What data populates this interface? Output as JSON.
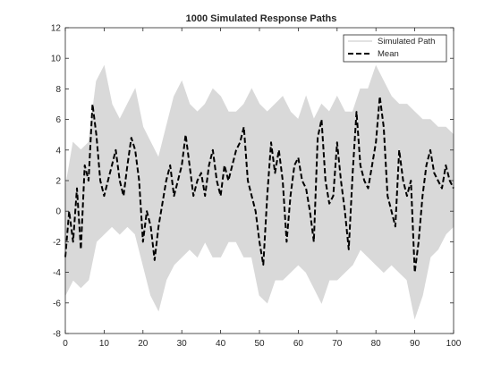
{
  "chart_data": {
    "type": "line",
    "title": "1000 Simulated Response Paths",
    "xlabel": "",
    "ylabel": "",
    "xlim": [
      0,
      100
    ],
    "ylim": [
      -8,
      12
    ],
    "xticks": [
      0,
      10,
      20,
      30,
      40,
      50,
      60,
      70,
      80,
      90,
      100
    ],
    "yticks": [
      -8,
      -6,
      -4,
      -2,
      0,
      2,
      4,
      6,
      8,
      10,
      12
    ],
    "grid": false,
    "legend_position": "top-right",
    "colors": {
      "simulated": "#d9d9d9",
      "mean": "#000000",
      "axes": "#262626"
    },
    "series": [
      {
        "name": "Simulated Path",
        "style": "band",
        "x": [
          0,
          2,
          4,
          6,
          8,
          10,
          12,
          14,
          16,
          18,
          20,
          22,
          24,
          26,
          28,
          30,
          32,
          34,
          36,
          38,
          40,
          42,
          44,
          46,
          48,
          50,
          52,
          54,
          56,
          58,
          60,
          62,
          64,
          66,
          68,
          70,
          72,
          74,
          76,
          78,
          80,
          82,
          84,
          86,
          88,
          90,
          92,
          94,
          96,
          98,
          100
        ],
        "upper": [
          1.5,
          4.5,
          4.0,
          4.5,
          8.5,
          9.5,
          7.0,
          6.0,
          7.0,
          8.0,
          5.5,
          4.5,
          3.5,
          5.5,
          7.5,
          8.5,
          7.0,
          6.5,
          7.0,
          8.0,
          7.5,
          6.5,
          6.5,
          7.0,
          8.0,
          7.0,
          6.5,
          7.0,
          7.5,
          6.5,
          6.0,
          7.5,
          6.0,
          7.0,
          6.5,
          7.5,
          6.5,
          6.5,
          8.0,
          8.0,
          9.5,
          8.5,
          7.5,
          7.0,
          7.0,
          6.5,
          6.0,
          6.0,
          5.5,
          5.5,
          5.0
        ],
        "lower": [
          -5.5,
          -4.5,
          -5.0,
          -4.5,
          -2.0,
          -1.5,
          -1.0,
          -1.5,
          -1.0,
          -1.5,
          -3.5,
          -5.5,
          -6.5,
          -4.5,
          -3.5,
          -3.0,
          -2.5,
          -3.0,
          -2.0,
          -3.0,
          -3.0,
          -2.0,
          -2.0,
          -3.0,
          -3.0,
          -5.5,
          -6.0,
          -4.5,
          -4.5,
          -4.0,
          -3.5,
          -4.0,
          -5.0,
          -6.0,
          -4.5,
          -4.5,
          -4.0,
          -3.5,
          -2.5,
          -3.0,
          -3.5,
          -4.0,
          -3.5,
          -4.0,
          -4.5,
          -7.0,
          -5.5,
          -3.0,
          -2.5,
          -1.5,
          -1.0
        ]
      },
      {
        "name": "Mean",
        "style": "dashed",
        "x": [
          0,
          1,
          2,
          3,
          4,
          5,
          6,
          7,
          8,
          9,
          10,
          11,
          12,
          13,
          14,
          15,
          16,
          17,
          18,
          19,
          20,
          21,
          22,
          23,
          24,
          25,
          26,
          27,
          28,
          29,
          30,
          31,
          32,
          33,
          34,
          35,
          36,
          37,
          38,
          39,
          40,
          41,
          42,
          43,
          44,
          45,
          46,
          47,
          48,
          49,
          50,
          51,
          52,
          53,
          54,
          55,
          56,
          57,
          58,
          59,
          60,
          61,
          62,
          63,
          64,
          65,
          66,
          67,
          68,
          69,
          70,
          71,
          72,
          73,
          74,
          75,
          76,
          77,
          78,
          79,
          80,
          81,
          82,
          83,
          84,
          85,
          86,
          87,
          88,
          89,
          90,
          91,
          92,
          93,
          94,
          95,
          96,
          97,
          98,
          99,
          100
        ],
        "values": [
          -3.0,
          0.0,
          -2.0,
          1.5,
          -2.5,
          3.0,
          2.0,
          7.0,
          5.0,
          2.0,
          1.0,
          2.0,
          3.0,
          4.0,
          2.0,
          1.0,
          3.0,
          4.8,
          4.0,
          2.0,
          -2.0,
          0.0,
          -1.0,
          -3.2,
          -1.0,
          0.5,
          2.0,
          3.0,
          1.0,
          2.0,
          3.0,
          5.0,
          3.0,
          1.0,
          2.0,
          2.5,
          1.0,
          3.0,
          4.0,
          2.0,
          1.0,
          3.0,
          2.0,
          3.0,
          4.0,
          4.5,
          5.5,
          2.0,
          1.0,
          0.0,
          -2.0,
          -3.5,
          1.0,
          4.5,
          2.5,
          4.0,
          2.0,
          -2.0,
          1.0,
          3.0,
          3.5,
          2.0,
          1.5,
          0.0,
          -2.0,
          4.8,
          6.0,
          2.0,
          0.5,
          1.0,
          4.5,
          2.0,
          0.0,
          -2.5,
          2.5,
          6.5,
          3.0,
          2.0,
          1.5,
          3.0,
          4.5,
          7.5,
          5.5,
          1.0,
          0.0,
          -1.0,
          4.0,
          2.0,
          1.0,
          2.0,
          -4.0,
          -2.0,
          1.0,
          3.0,
          4.0,
          2.5,
          2.0,
          1.5,
          3.0,
          2.0,
          1.5
        ]
      }
    ]
  }
}
